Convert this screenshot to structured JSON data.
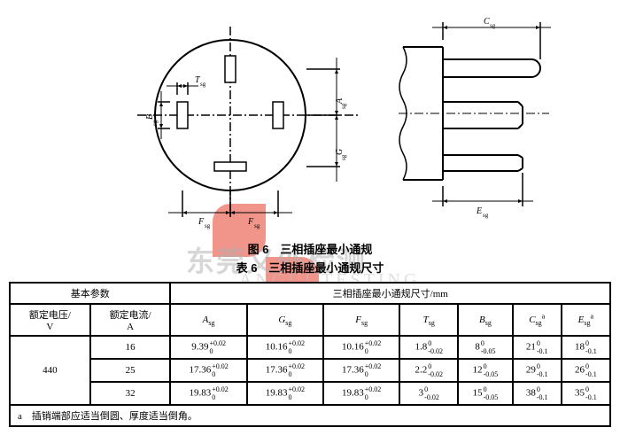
{
  "figure": {
    "caption": "图 6　三相插座最小通规",
    "table_caption": "表 6　三相插座最小通规尺寸",
    "dim_labels": [
      "A_sg",
      "B_sg",
      "C_sg",
      "E_sg",
      "F_sg",
      "F_sg",
      "G_sg",
      "T_sg"
    ]
  },
  "table": {
    "group_left": "基本参数",
    "group_right": "三相插座最小通规尺寸/mm",
    "cols": {
      "voltage": "额定电压/\nV",
      "current": "额定电流/\nA",
      "A": "A_sg",
      "G": "G_sg",
      "F": "F_sg",
      "T": "T_sg",
      "B": "B_sg",
      "C": "C_sg^a",
      "E": "E_sg^a"
    },
    "rows": [
      {
        "v": "440",
        "i": "16",
        "A": {
          "n": "9.39",
          "u": "+0.02",
          "l": "0"
        },
        "G": {
          "n": "10.16",
          "u": "+0.02",
          "l": "0"
        },
        "F": {
          "n": "10.16",
          "u": "+0.02",
          "l": "0"
        },
        "T": {
          "n": "1.8",
          "u": "0",
          "l": "-0.02"
        },
        "B": {
          "n": "8",
          "u": "0",
          "l": "-0.05"
        },
        "C": {
          "n": "21",
          "u": "0",
          "l": "-0.1"
        },
        "E": {
          "n": "18",
          "u": "0",
          "l": "-0.1"
        }
      },
      {
        "v": "",
        "i": "25",
        "A": {
          "n": "17.36",
          "u": "+0.02",
          "l": "0"
        },
        "G": {
          "n": "17.36",
          "u": "+0.02",
          "l": "0"
        },
        "F": {
          "n": "17.36",
          "u": "+0.02",
          "l": "0"
        },
        "T": {
          "n": "2.2",
          "u": "0",
          "l": "-0.02"
        },
        "B": {
          "n": "12",
          "u": "0",
          "l": "-0.05"
        },
        "C": {
          "n": "29",
          "u": "0",
          "l": "-0.1"
        },
        "E": {
          "n": "26",
          "u": "0",
          "l": "-0.1"
        }
      },
      {
        "v": "",
        "i": "32",
        "A": {
          "n": "19.83",
          "u": "+0.02",
          "l": "0"
        },
        "G": {
          "n": "19.83",
          "u": "+0.02",
          "l": "0"
        },
        "F": {
          "n": "19.83",
          "u": "+0.02",
          "l": "0"
        },
        "T": {
          "n": "3",
          "u": "0",
          "l": "-0.02"
        },
        "B": {
          "n": "15",
          "u": "0",
          "l": "-0.05"
        },
        "C": {
          "n": "38",
          "u": "0",
          "l": "-0.1"
        },
        "E": {
          "n": "35",
          "u": "0",
          "l": "-0.1"
        }
      }
    ],
    "note": "a　插销端部应适当倒圆、厚度适当倒角。"
  },
  "watermark": {
    "line1": "东莞又外检测",
    "line2": "ANGUI TESTING"
  },
  "style": {
    "border": "#000",
    "bg": "#fff",
    "wm_red": "#e74c3c",
    "wm_gray": "#b0b0b0",
    "font": "SimSun",
    "size": 11
  }
}
